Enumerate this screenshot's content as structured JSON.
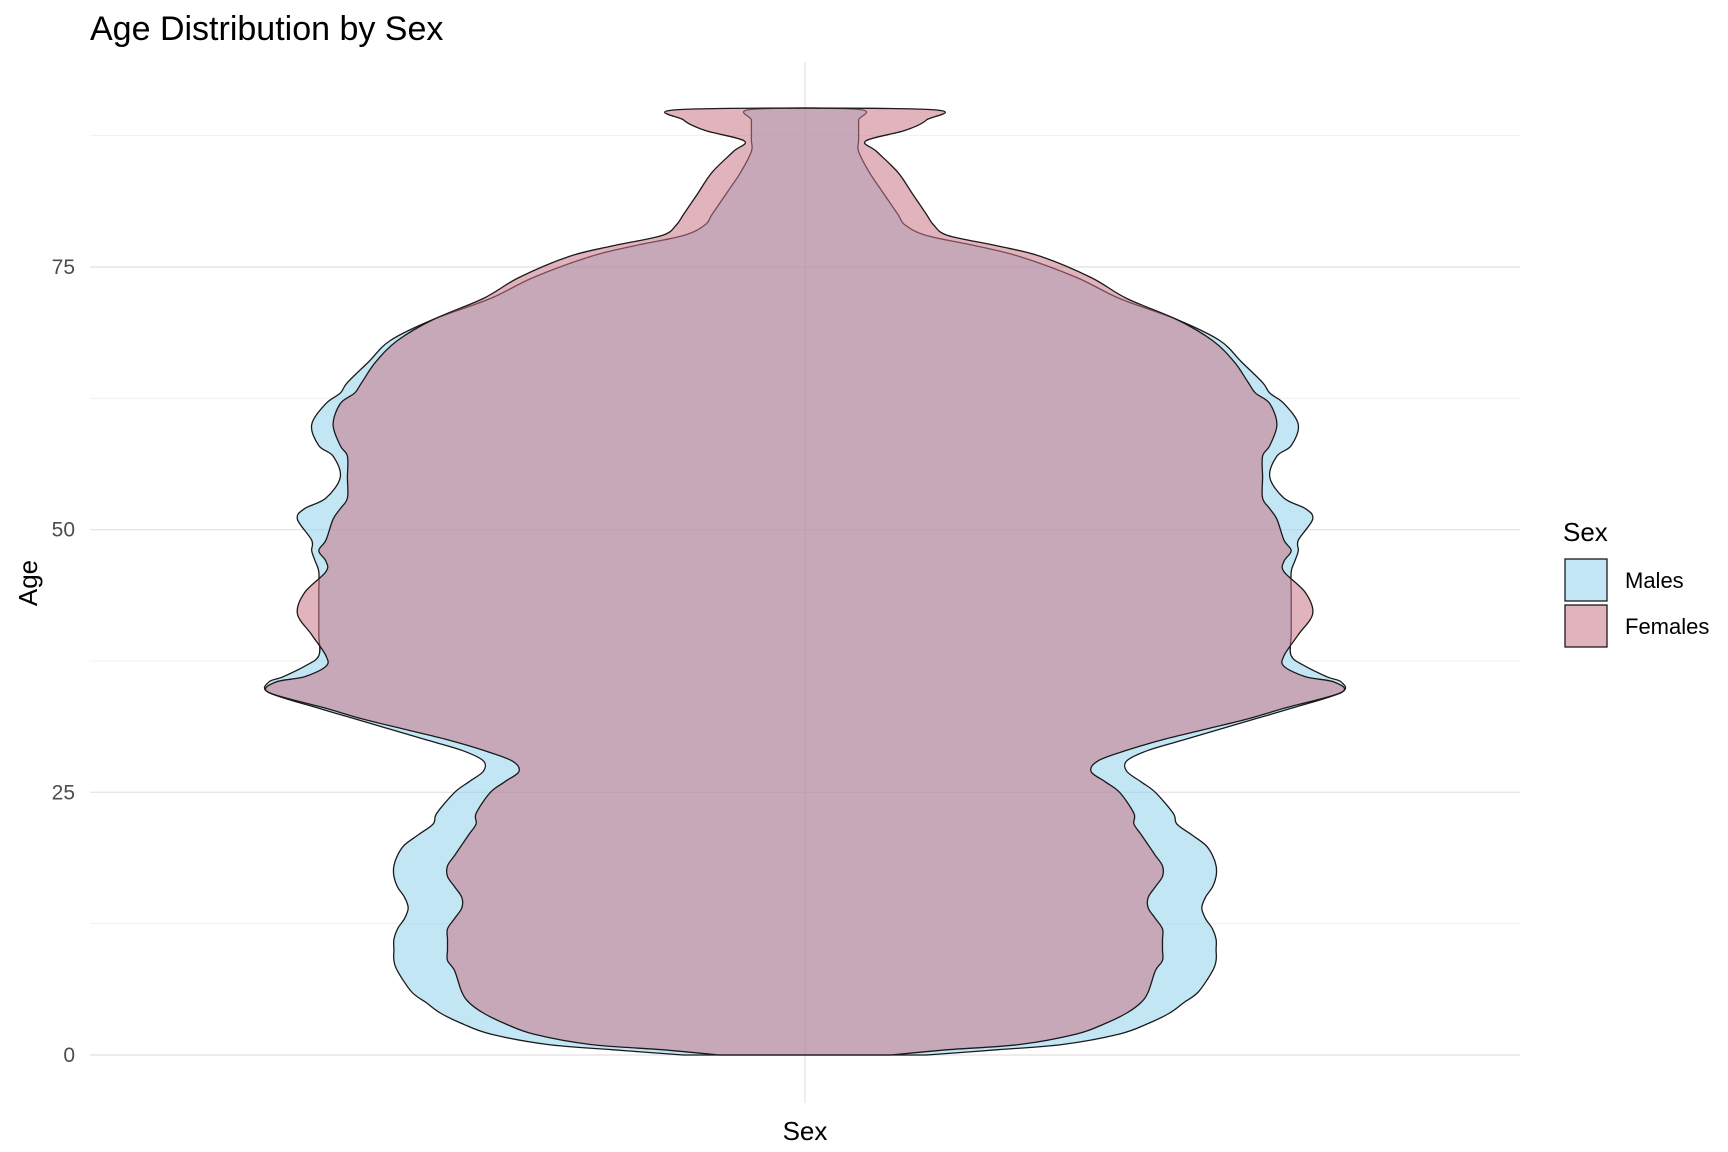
{
  "chart_data": {
    "type": "violin",
    "title": "Age Distribution by Sex",
    "xlabel": "Sex",
    "ylabel": "Age",
    "ylim": [
      0,
      90
    ],
    "yticks": [
      0,
      25,
      50,
      75
    ],
    "ytick_labels": [
      "0",
      "25",
      "50",
      "75"
    ],
    "grid": true,
    "legend": {
      "title": "Sex",
      "position": "right",
      "entries": [
        "Males",
        "Females"
      ]
    },
    "series": [
      {
        "name": "Males",
        "color": "#87CEEB",
        "opacity": 0.5,
        "age": [
          0,
          0.5,
          1,
          2,
          3,
          4,
          5,
          6,
          8,
          9,
          10,
          11,
          12,
          13,
          14,
          15,
          16,
          17,
          18,
          19,
          20,
          21,
          22,
          23,
          25,
          26,
          27,
          28,
          29,
          30,
          31,
          32,
          33,
          34.5,
          35.5,
          36,
          37,
          38,
          40,
          42,
          44,
          46,
          47,
          48,
          49,
          51,
          52,
          53,
          55,
          57,
          58,
          60,
          62,
          63,
          64,
          66,
          68,
          70,
          72,
          74,
          76,
          77,
          78,
          79,
          80,
          82,
          84,
          86,
          87,
          88,
          89,
          90
        ],
        "half_width": [
          0.17,
          0.27,
          0.36,
          0.44,
          0.48,
          0.51,
          0.53,
          0.55,
          0.57,
          0.575,
          0.575,
          0.575,
          0.57,
          0.56,
          0.555,
          0.56,
          0.57,
          0.575,
          0.575,
          0.57,
          0.56,
          0.54,
          0.52,
          0.515,
          0.49,
          0.47,
          0.45,
          0.45,
          0.48,
          0.53,
          0.58,
          0.63,
          0.68,
          0.75,
          0.75,
          0.73,
          0.7,
          0.68,
          0.68,
          0.68,
          0.68,
          0.68,
          0.685,
          0.69,
          0.69,
          0.71,
          0.7,
          0.67,
          0.65,
          0.66,
          0.68,
          0.69,
          0.67,
          0.65,
          0.64,
          0.61,
          0.58,
          0.52,
          0.44,
          0.38,
          0.3,
          0.24,
          0.17,
          0.14,
          0.13,
          0.11,
          0.09,
          0.075,
          0.075,
          0.075,
          0.075,
          0.075
        ]
      },
      {
        "name": "Females",
        "color": "#C97585",
        "opacity": 0.55,
        "age": [
          0,
          0.5,
          1,
          2,
          3,
          4,
          5,
          6,
          8,
          9,
          10,
          11,
          12,
          13,
          14,
          15,
          16,
          17,
          18,
          19,
          20,
          21,
          22,
          23,
          25,
          26,
          27,
          28,
          29,
          30,
          31,
          32,
          33,
          34.5,
          35.5,
          36,
          37,
          38,
          40,
          42,
          44,
          46,
          47,
          48,
          49,
          51,
          52,
          53,
          55,
          57,
          58,
          60,
          62,
          63,
          64,
          66,
          68,
          70,
          72,
          74,
          76,
          77,
          78,
          79,
          80,
          82,
          84,
          86,
          87,
          88,
          89,
          90
        ],
        "half_width": [
          0.12,
          0.2,
          0.3,
          0.38,
          0.42,
          0.45,
          0.47,
          0.48,
          0.49,
          0.5,
          0.5,
          0.5,
          0.5,
          0.49,
          0.48,
          0.48,
          0.49,
          0.5,
          0.5,
          0.49,
          0.48,
          0.47,
          0.46,
          0.46,
          0.44,
          0.42,
          0.4,
          0.41,
          0.45,
          0.5,
          0.56,
          0.62,
          0.67,
          0.75,
          0.74,
          0.7,
          0.67,
          0.67,
          0.69,
          0.71,
          0.7,
          0.67,
          0.67,
          0.68,
          0.67,
          0.66,
          0.65,
          0.64,
          0.64,
          0.64,
          0.65,
          0.66,
          0.65,
          0.63,
          0.62,
          0.6,
          0.57,
          0.52,
          0.45,
          0.4,
          0.33,
          0.27,
          0.2,
          0.18,
          0.17,
          0.15,
          0.13,
          0.1,
          0.085,
          0.14,
          0.17,
          0.17
        ]
      }
    ]
  }
}
